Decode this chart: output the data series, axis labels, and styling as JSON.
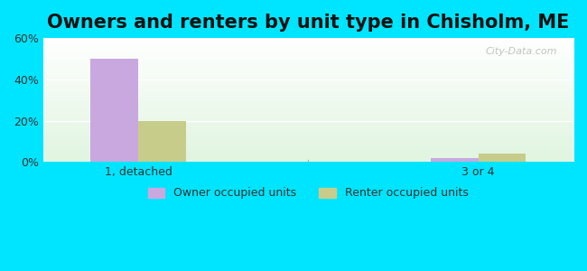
{
  "title": "Owners and renters by unit type in Chisholm, ME",
  "categories": [
    "1, detached",
    "3 or 4"
  ],
  "owner_values": [
    50.0,
    2.0
  ],
  "renter_values": [
    20.0,
    4.0
  ],
  "owner_color": "#c9a8e0",
  "renter_color": "#c8cc8a",
  "ylim": [
    0,
    60
  ],
  "yticks": [
    0,
    20,
    40,
    60
  ],
  "ytick_labels": [
    "0%",
    "20%",
    "40%",
    "60%"
  ],
  "bar_width": 0.35,
  "background_outer": "#00e5ff",
  "background_inner_top": "#f0fff0",
  "background_inner_bottom": "#e8f5e8",
  "watermark": "City-Data.com",
  "legend_owner": "Owner occupied units",
  "legend_renter": "Renter occupied units",
  "title_fontsize": 15,
  "group_positions": [
    1.0,
    3.5
  ]
}
